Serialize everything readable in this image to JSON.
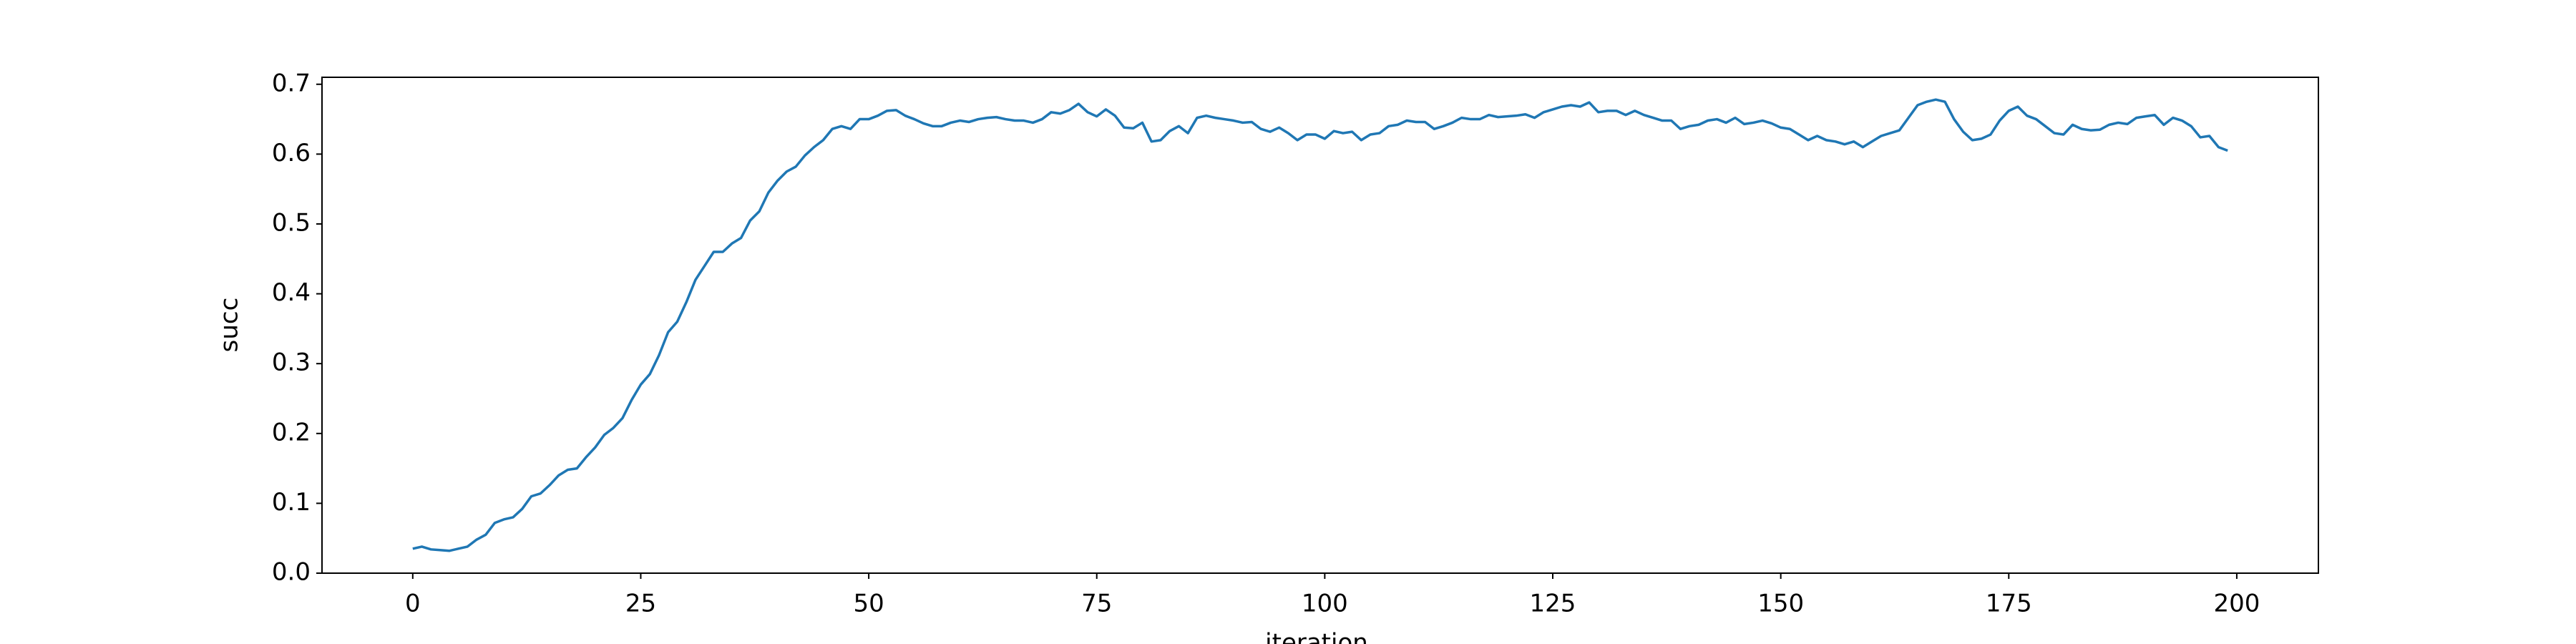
{
  "chart_data": {
    "type": "line",
    "xlabel": "iteration",
    "ylabel": "succ",
    "color": "#1f77b4",
    "x": [
      0,
      1,
      2,
      3,
      4,
      5,
      6,
      7,
      8,
      9,
      10,
      11,
      12,
      13,
      14,
      15,
      16,
      17,
      18,
      19,
      20,
      21,
      22,
      23,
      24,
      25,
      26,
      27,
      28,
      29,
      30,
      31,
      32,
      33,
      34,
      35,
      36,
      37,
      38,
      39,
      40,
      41,
      42,
      43,
      44,
      45,
      46,
      47,
      48,
      49,
      50,
      51,
      52,
      53,
      54,
      55,
      56,
      57,
      58,
      59,
      60,
      61,
      62,
      63,
      64,
      65,
      66,
      67,
      68,
      69,
      70,
      71,
      72,
      73,
      74,
      75,
      76,
      77,
      78,
      79,
      80,
      81,
      82,
      83,
      84,
      85,
      86,
      87,
      88,
      89,
      90,
      91,
      92,
      93,
      94,
      95,
      96,
      97,
      98,
      99,
      100,
      101,
      102,
      103,
      104,
      105,
      106,
      107,
      108,
      109,
      110,
      111,
      112,
      113,
      114,
      115,
      116,
      117,
      118,
      119,
      120,
      121,
      122,
      123,
      124,
      125,
      126,
      127,
      128,
      129,
      130,
      131,
      132,
      133,
      134,
      135,
      136,
      137,
      138,
      139,
      140,
      141,
      142,
      143,
      144,
      145,
      146,
      147,
      148,
      149,
      150,
      151,
      152,
      153,
      154,
      155,
      156,
      157,
      158,
      159,
      160,
      161,
      162,
      163,
      164,
      165,
      166,
      167,
      168,
      169,
      170,
      171,
      172,
      173,
      174,
      175,
      176,
      177,
      178,
      179,
      180,
      181,
      182,
      183,
      184,
      185,
      186,
      187,
      188,
      189,
      190,
      191,
      192,
      193,
      194,
      195,
      196,
      197,
      198,
      199
    ],
    "values": [
      0.035,
      0.038,
      0.034,
      0.033,
      0.032,
      0.035,
      0.038,
      0.048,
      0.055,
      0.072,
      0.077,
      0.08,
      0.092,
      0.11,
      0.114,
      0.126,
      0.14,
      0.148,
      0.15,
      0.166,
      0.18,
      0.198,
      0.208,
      0.222,
      0.248,
      0.27,
      0.285,
      0.312,
      0.345,
      0.36,
      0.388,
      0.42,
      0.44,
      0.46,
      0.46,
      0.472,
      0.48,
      0.505,
      0.518,
      0.545,
      0.562,
      0.575,
      0.582,
      0.598,
      0.61,
      0.62,
      0.636,
      0.64,
      0.636,
      0.65,
      0.65,
      0.655,
      0.662,
      0.663,
      0.655,
      0.65,
      0.644,
      0.64,
      0.64,
      0.645,
      0.648,
      0.646,
      0.65,
      0.652,
      0.653,
      0.65,
      0.648,
      0.648,
      0.645,
      0.65,
      0.66,
      0.658,
      0.663,
      0.672,
      0.66,
      0.654,
      0.664,
      0.655,
      0.638,
      0.637,
      0.645,
      0.618,
      0.62,
      0.633,
      0.64,
      0.63,
      0.652,
      0.655,
      0.652,
      0.65,
      0.648,
      0.645,
      0.646,
      0.636,
      0.632,
      0.638,
      0.63,
      0.62,
      0.628,
      0.628,
      0.622,
      0.633,
      0.63,
      0.632,
      0.62,
      0.628,
      0.63,
      0.64,
      0.642,
      0.648,
      0.646,
      0.646,
      0.636,
      0.64,
      0.645,
      0.652,
      0.65,
      0.65,
      0.656,
      0.653,
      0.654,
      0.655,
      0.657,
      0.652,
      0.66,
      0.664,
      0.668,
      0.67,
      0.668,
      0.674,
      0.66,
      0.662,
      0.662,
      0.656,
      0.662,
      0.656,
      0.652,
      0.648,
      0.648,
      0.636,
      0.64,
      0.642,
      0.648,
      0.65,
      0.645,
      0.652,
      0.643,
      0.645,
      0.648,
      0.644,
      0.638,
      0.636,
      0.628,
      0.62,
      0.626,
      0.62,
      0.618,
      0.614,
      0.618,
      0.61,
      0.618,
      0.626,
      0.63,
      0.634,
      0.652,
      0.67,
      0.675,
      0.678,
      0.675,
      0.65,
      0.632,
      0.62,
      0.622,
      0.628,
      0.648,
      0.662,
      0.668,
      0.655,
      0.65,
      0.64,
      0.63,
      0.628,
      0.642,
      0.636,
      0.634,
      0.635,
      0.642,
      0.645,
      0.643,
      0.652,
      0.654,
      0.656,
      0.642,
      0.652,
      0.648,
      0.64,
      0.624,
      0.626,
      0.61,
      0.605
    ],
    "xlim": [
      -9.95,
      208.95
    ],
    "xticks": [
      0,
      25,
      50,
      75,
      100,
      125,
      150,
      175,
      200
    ],
    "ylim": [
      0,
      0.71
    ],
    "yticks": [
      {
        "value": 0,
        "label": "0.0"
      },
      0.1,
      0.2,
      0.3,
      0.4,
      0.5,
      0.6,
      0.7
    ]
  }
}
